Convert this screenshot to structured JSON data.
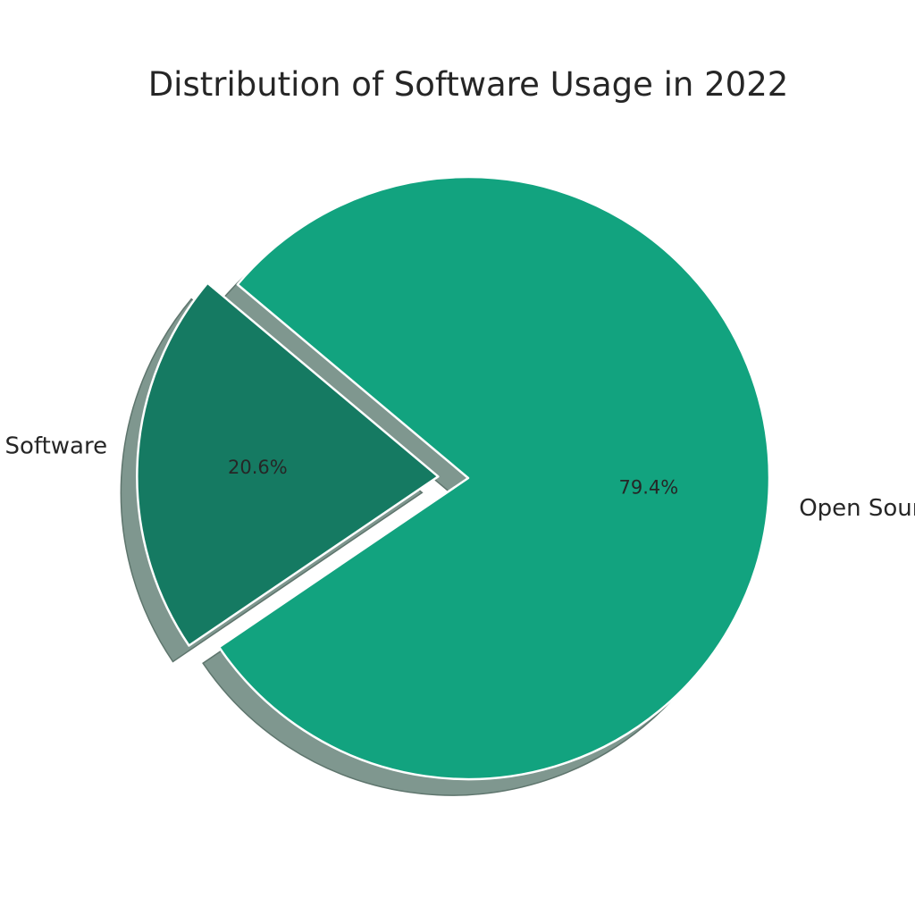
{
  "chart_data": {
    "type": "pie",
    "title": "Distribution of Software Usage in 2022",
    "slices": [
      {
        "label": "Closed Source Software",
        "value": 20.6,
        "percent_label": "20.6%",
        "color": "#157a62",
        "exploded": true
      },
      {
        "label": "Open Source Software",
        "value": 79.4,
        "percent_label": "79.4%",
        "color": "#12a37f",
        "exploded": false
      }
    ],
    "shadow": true,
    "start_angle_deg": 140,
    "direction": "counterclockwise"
  }
}
